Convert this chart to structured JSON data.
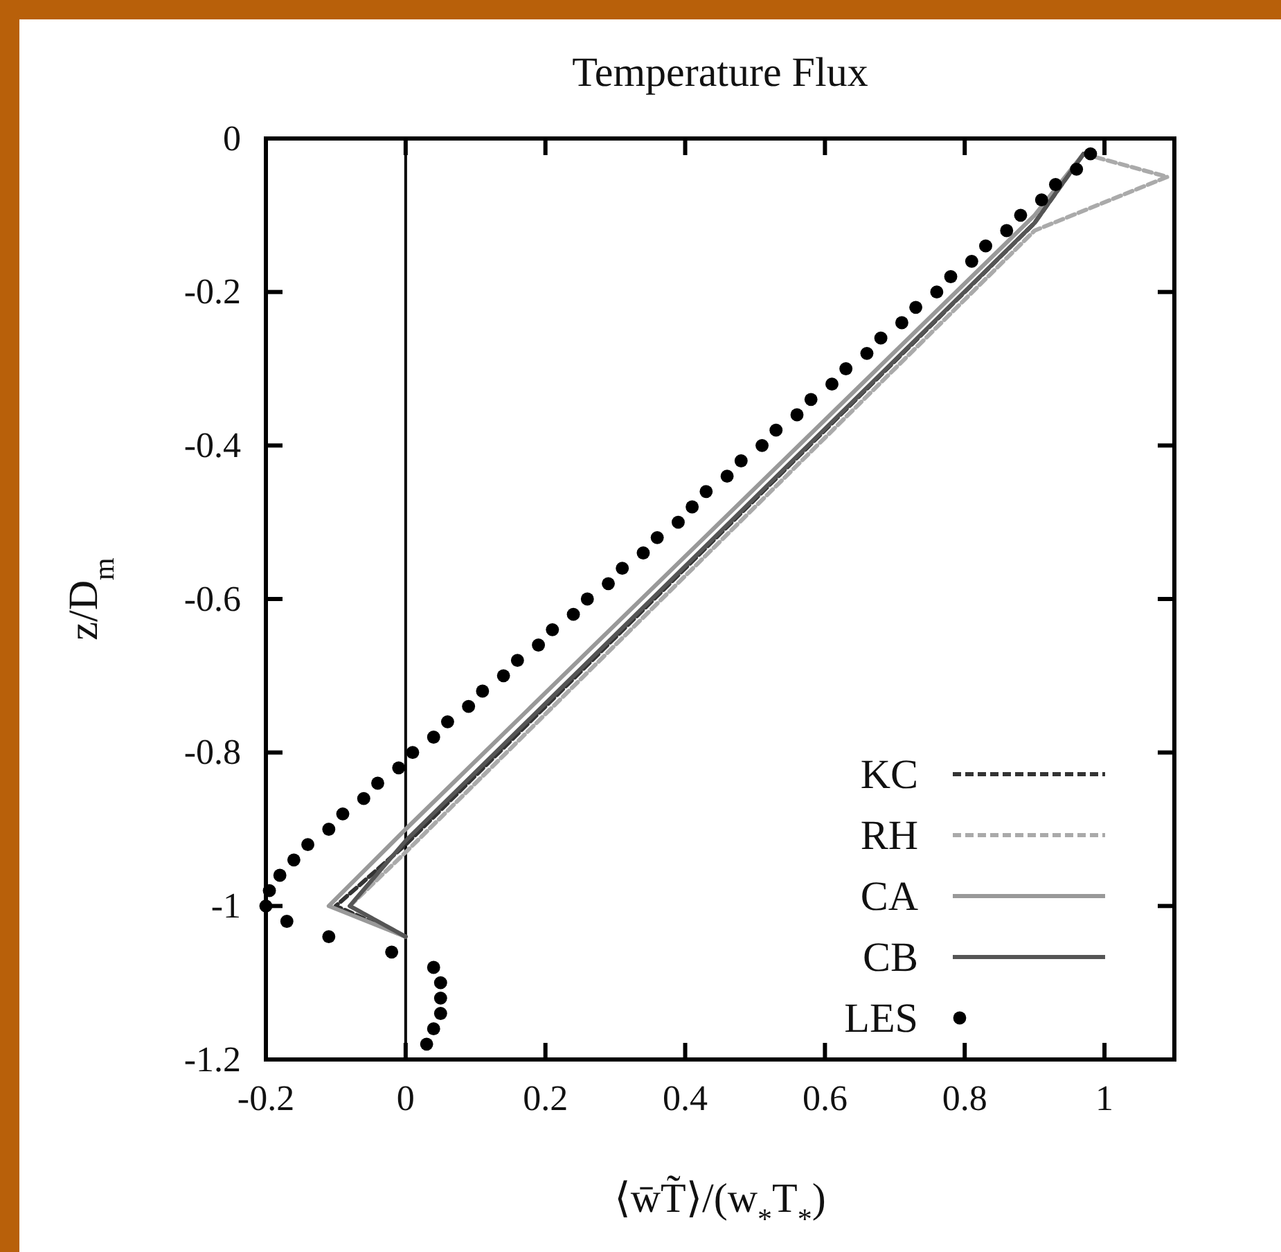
{
  "chart_data": {
    "type": "line",
    "title": "Temperature Flux",
    "xlabel": "⟨w̄T̃⟩/(w$_{*}$T$_{*}$)",
    "ylabel": "z/D$_{m}$",
    "xlim": [
      -0.2,
      1.1
    ],
    "xticks": [
      -0.2,
      0,
      0.2,
      0.4,
      0.6,
      0.8,
      1
    ],
    "ylim": [
      -1.2,
      0
    ],
    "yticks": [
      -1.2,
      -1,
      -0.8,
      -0.6,
      -0.4,
      -0.2,
      0
    ],
    "grid": false,
    "legend": "bottom right",
    "ref_lines": [
      {
        "axis": "x",
        "value": 0,
        "color": "#000000",
        "line_style": "solid"
      }
    ],
    "series": [
      {
        "name": "KC",
        "color": "#333333",
        "line_style": "dashed",
        "x": [
          0.97,
          0.9,
          0,
          -0.1,
          0
        ],
        "values": [
          -0.02,
          -0.11,
          -0.92,
          -1.0,
          -1.04
        ]
      },
      {
        "name": "RH",
        "color": "#aaaaaa",
        "line_style": "dashed",
        "x": [
          0.97,
          1.09,
          0.9,
          0,
          -0.08,
          0
        ],
        "values": [
          -0.02,
          -0.05,
          -0.12,
          -0.93,
          -1.0,
          -1.04
        ]
      },
      {
        "name": "CA",
        "color": "#999999",
        "line_style": "solid",
        "x": [
          0.97,
          0.9,
          0,
          -0.11,
          0
        ],
        "values": [
          -0.02,
          -0.1,
          -0.9,
          -1.0,
          -1.04
        ]
      },
      {
        "name": "CB",
        "color": "#555555",
        "line_style": "solid",
        "x": [
          0.97,
          0.9,
          0,
          -0.08,
          0
        ],
        "values": [
          -0.02,
          -0.11,
          -0.915,
          -1.0,
          -1.04
        ]
      },
      {
        "name": "LES",
        "type": "scatter",
        "color": "#000000",
        "marker": "circle",
        "x": [
          0.98,
          0.96,
          0.93,
          0.91,
          0.88,
          0.86,
          0.83,
          0.81,
          0.78,
          0.76,
          0.73,
          0.71,
          0.68,
          0.66,
          0.63,
          0.61,
          0.58,
          0.56,
          0.53,
          0.51,
          0.48,
          0.46,
          0.43,
          0.41,
          0.39,
          0.36,
          0.34,
          0.31,
          0.29,
          0.26,
          0.24,
          0.21,
          0.19,
          0.16,
          0.14,
          0.11,
          0.09,
          0.06,
          0.04,
          0.01,
          -0.01,
          -0.04,
          -0.06,
          -0.09,
          -0.11,
          -0.14,
          -0.16,
          -0.18,
          -0.195,
          -0.2,
          -0.17,
          -0.11,
          -0.02,
          0.04,
          0.05,
          0.05,
          0.05,
          0.04,
          0.03
        ],
        "values": [
          -0.02,
          -0.04,
          -0.06,
          -0.08,
          -0.1,
          -0.12,
          -0.14,
          -0.16,
          -0.18,
          -0.2,
          -0.22,
          -0.24,
          -0.26,
          -0.28,
          -0.3,
          -0.32,
          -0.34,
          -0.36,
          -0.38,
          -0.4,
          -0.42,
          -0.44,
          -0.46,
          -0.48,
          -0.5,
          -0.52,
          -0.54,
          -0.56,
          -0.58,
          -0.6,
          -0.62,
          -0.64,
          -0.66,
          -0.68,
          -0.7,
          -0.72,
          -0.74,
          -0.76,
          -0.78,
          -0.8,
          -0.82,
          -0.84,
          -0.86,
          -0.88,
          -0.9,
          -0.92,
          -0.94,
          -0.96,
          -0.98,
          -1.0,
          -1.02,
          -1.04,
          -1.06,
          -1.08,
          -1.1,
          -1.12,
          -1.14,
          -1.16,
          -1.18
        ]
      }
    ]
  }
}
